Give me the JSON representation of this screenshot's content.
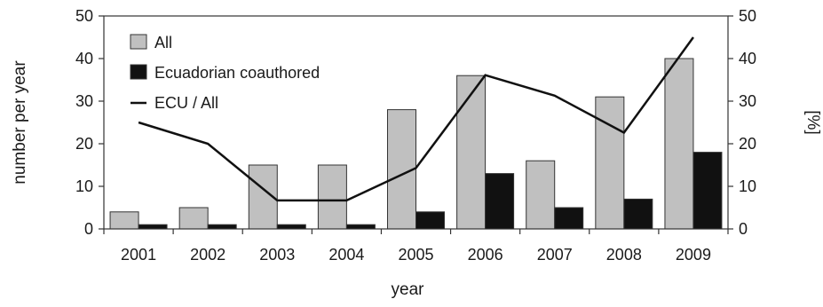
{
  "chart_data": {
    "type": "bar",
    "categories": [
      "2001",
      "2002",
      "2003",
      "2004",
      "2005",
      "2006",
      "2007",
      "2008",
      "2009"
    ],
    "series": [
      {
        "name": "All",
        "kind": "bar",
        "axis": "left",
        "color": "#c0c0c0",
        "values": [
          4,
          5,
          15,
          15,
          28,
          36,
          16,
          31,
          40
        ]
      },
      {
        "name": "Ecuadorian coauthored",
        "kind": "bar",
        "axis": "left",
        "color": "#111111",
        "values": [
          1,
          1,
          1,
          1,
          4,
          13,
          5,
          7,
          18
        ]
      },
      {
        "name": "ECU / All",
        "kind": "line",
        "axis": "right",
        "color": "#111111",
        "values": [
          25,
          20,
          6.7,
          6.7,
          14.3,
          36.1,
          31.3,
          22.6,
          45
        ]
      }
    ],
    "xlabel": "year",
    "ylabel": "number per year",
    "y2label": "[%]",
    "ylim": [
      0,
      50
    ],
    "y2lim": [
      0,
      50
    ],
    "yticks": [
      0,
      10,
      20,
      30,
      40,
      50
    ],
    "y2ticks": [
      0,
      10,
      20,
      30,
      40,
      50
    ],
    "grid": false,
    "legend_position": "top-left"
  }
}
